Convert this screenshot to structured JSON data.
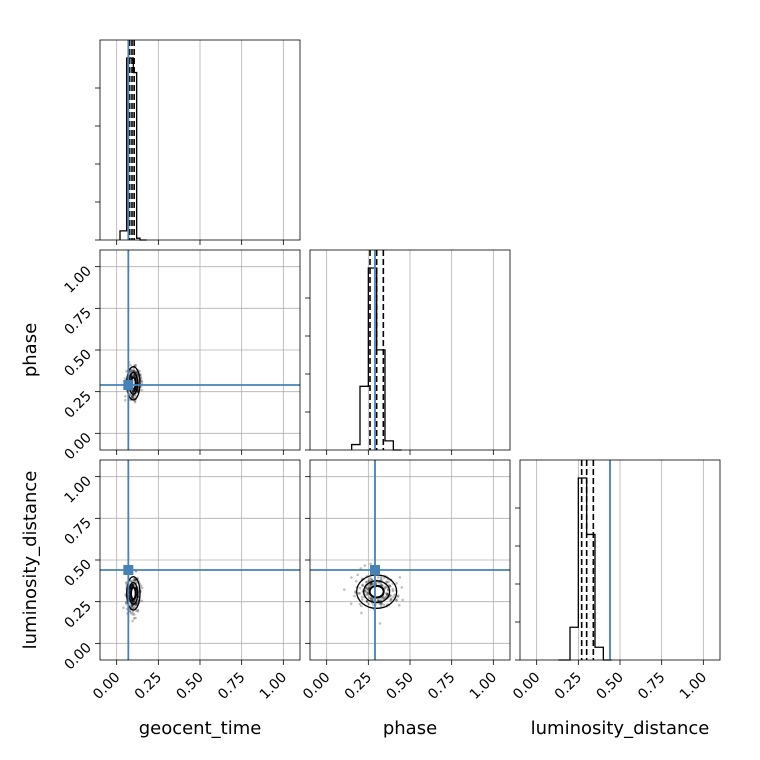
{
  "chart_data": {
    "type": "corner",
    "parameters": [
      "geocent_time",
      "phase",
      "luminosity_distance"
    ],
    "axis_range": [
      -0.1,
      1.1
    ],
    "ticks": [
      0.0,
      0.25,
      0.5,
      0.75,
      1.0
    ],
    "tick_labels": [
      "0.00",
      "0.25",
      "0.50",
      "0.75",
      "1.00"
    ],
    "truths": {
      "geocent_time": 0.07,
      "phase": 0.29,
      "luminosity_distance": 0.44
    },
    "truth_color": "#4682b4",
    "grid": true,
    "histograms": [
      {
        "parameter": "geocent_time",
        "bin_edges": [
          0.02,
          0.06,
          0.08,
          0.1,
          0.12,
          0.14,
          0.18
        ],
        "values": [
          0.05,
          1.0,
          1.0,
          0.92,
          0.01,
          0.0
        ],
        "quantiles": [
          0.078,
          0.092,
          0.105
        ]
      },
      {
        "parameter": "phase",
        "bin_edges": [
          0.15,
          0.2,
          0.25,
          0.3,
          0.35,
          0.4,
          0.45
        ],
        "values": [
          0.03,
          0.35,
          1.0,
          0.55,
          0.05,
          0.0
        ],
        "quantiles": [
          0.26,
          0.3,
          0.34
        ]
      },
      {
        "parameter": "luminosity_distance",
        "bin_edges": [
          0.13,
          0.2,
          0.25,
          0.3,
          0.35,
          0.4,
          0.45
        ],
        "values": [
          0.0,
          0.18,
          1.0,
          0.69,
          0.07,
          0.0
        ],
        "quantiles": [
          0.27,
          0.3,
          0.34
        ]
      }
    ],
    "density_blobs": [
      {
        "row": "phase",
        "col": "geocent_time",
        "center": [
          0.1,
          0.3
        ],
        "spread": [
          0.02,
          0.05
        ]
      },
      {
        "row": "luminosity_distance",
        "col": "geocent_time",
        "center": [
          0.1,
          0.3
        ],
        "spread": [
          0.02,
          0.05
        ]
      },
      {
        "row": "luminosity_distance",
        "col": "phase",
        "center": [
          0.3,
          0.31
        ],
        "spread": [
          0.06,
          0.05
        ]
      }
    ]
  }
}
